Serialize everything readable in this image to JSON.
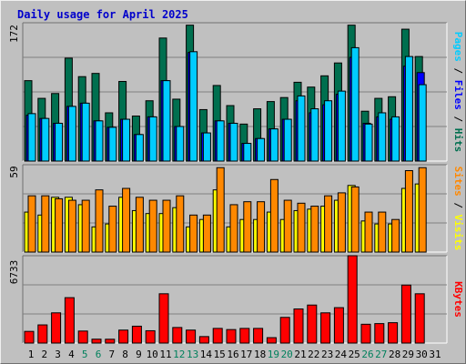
{
  "title": "Daily usage for April 2025",
  "colors": {
    "hits": "#006f4f",
    "files": "#0000ff",
    "pages": "#00ccff",
    "visits": "#ffff00",
    "sites": "#ff8800",
    "kbytes": "#ff0000",
    "weekend_day": "#00805c",
    "weekday": "#000000",
    "panel": "#c0c0c0",
    "grid": "#808080"
  },
  "chart_data": [
    {
      "type": "bar",
      "id": "hits_files_pages",
      "y_tick_label": "172",
      "right_label": {
        "pages": "Pages",
        "sep1": " / ",
        "files": "Files",
        "sep2": " / ",
        "hits": "Hits"
      },
      "categories": [
        "1",
        "2",
        "3",
        "4",
        "5",
        "6",
        "7",
        "8",
        "9",
        "10",
        "11",
        "12",
        "13",
        "14",
        "15",
        "16",
        "17",
        "18",
        "19",
        "20",
        "21",
        "22",
        "23",
        "24",
        "25",
        "26",
        "27",
        "28",
        "29",
        "30",
        "31"
      ],
      "weekend_days": [
        "5",
        "6",
        "12",
        "13",
        "19",
        "20",
        "26",
        "27"
      ],
      "ylim": [
        0,
        172
      ],
      "series": [
        {
          "name": "Hits",
          "values": [
            100,
            78,
            84,
            128,
            105,
            109,
            60,
            99,
            56,
            75,
            153,
            77,
            169,
            64,
            94,
            69,
            46,
            65,
            74,
            79,
            98,
            92,
            106,
            122,
            169,
            62,
            78,
            80,
            164,
            130,
            0
          ]
        },
        {
          "name": "Files",
          "values": [
            57,
            53,
            47,
            68,
            72,
            50,
            42,
            52,
            33,
            55,
            100,
            43,
            135,
            35,
            50,
            47,
            22,
            28,
            40,
            52,
            75,
            60,
            70,
            83,
            129,
            47,
            55,
            52,
            118,
            110,
            0
          ]
        },
        {
          "name": "Pages",
          "values": [
            59,
            53,
            47,
            68,
            72,
            50,
            42,
            52,
            33,
            55,
            100,
            43,
            136,
            35,
            50,
            47,
            22,
            28,
            40,
            52,
            81,
            65,
            75,
            87,
            141,
            46,
            60,
            55,
            130,
            95,
            0
          ]
        }
      ]
    },
    {
      "type": "bar",
      "id": "visits_sites",
      "y_tick_label": "59",
      "right_label": {
        "sites": "Sites",
        "sep": " / ",
        "visits": "Visits"
      },
      "categories": [
        "1",
        "2",
        "3",
        "4",
        "5",
        "6",
        "7",
        "8",
        "9",
        "10",
        "11",
        "12",
        "13",
        "14",
        "15",
        "16",
        "17",
        "18",
        "19",
        "20",
        "21",
        "22",
        "23",
        "24",
        "25",
        "26",
        "27",
        "28",
        "29",
        "30",
        "31"
      ],
      "ylim": [
        0,
        59
      ],
      "series": [
        {
          "name": "Visits",
          "values": [
            27,
            25,
            37,
            37,
            32,
            17,
            19,
            37,
            28,
            26,
            26,
            30,
            17,
            22,
            42,
            17,
            22,
            22,
            27,
            22,
            28,
            29,
            31,
            35,
            45,
            21,
            19,
            19,
            43,
            46,
            0
          ]
        },
        {
          "name": "Sites",
          "values": [
            38,
            38,
            36,
            35,
            35,
            42,
            31,
            43,
            37,
            35,
            35,
            38,
            25,
            25,
            57,
            32,
            34,
            34,
            49,
            35,
            33,
            31,
            38,
            40,
            44,
            27,
            27,
            22,
            55,
            57,
            0
          ]
        }
      ]
    },
    {
      "type": "bar",
      "id": "kbytes",
      "y_tick_label": "6733",
      "right_label": {
        "kbytes": "KBytes"
      },
      "categories": [
        "1",
        "2",
        "3",
        "4",
        "5",
        "6",
        "7",
        "8",
        "9",
        "10",
        "11",
        "12",
        "13",
        "14",
        "15",
        "16",
        "17",
        "18",
        "19",
        "20",
        "21",
        "22",
        "23",
        "24",
        "25",
        "26",
        "27",
        "28",
        "29",
        "30",
        "31"
      ],
      "ylim": [
        0,
        6733
      ],
      "series": [
        {
          "name": "KBytes",
          "values": [
            900,
            1400,
            2330,
            3500,
            926,
            300,
            296,
            1000,
            1300,
            950,
            3800,
            1200,
            1000,
            500,
            1130,
            1040,
            1130,
            1130,
            417,
            1980,
            2630,
            2930,
            2330,
            2730,
            6733,
            1450,
            1500,
            1570,
            4470,
            3800,
            0
          ]
        }
      ]
    }
  ]
}
